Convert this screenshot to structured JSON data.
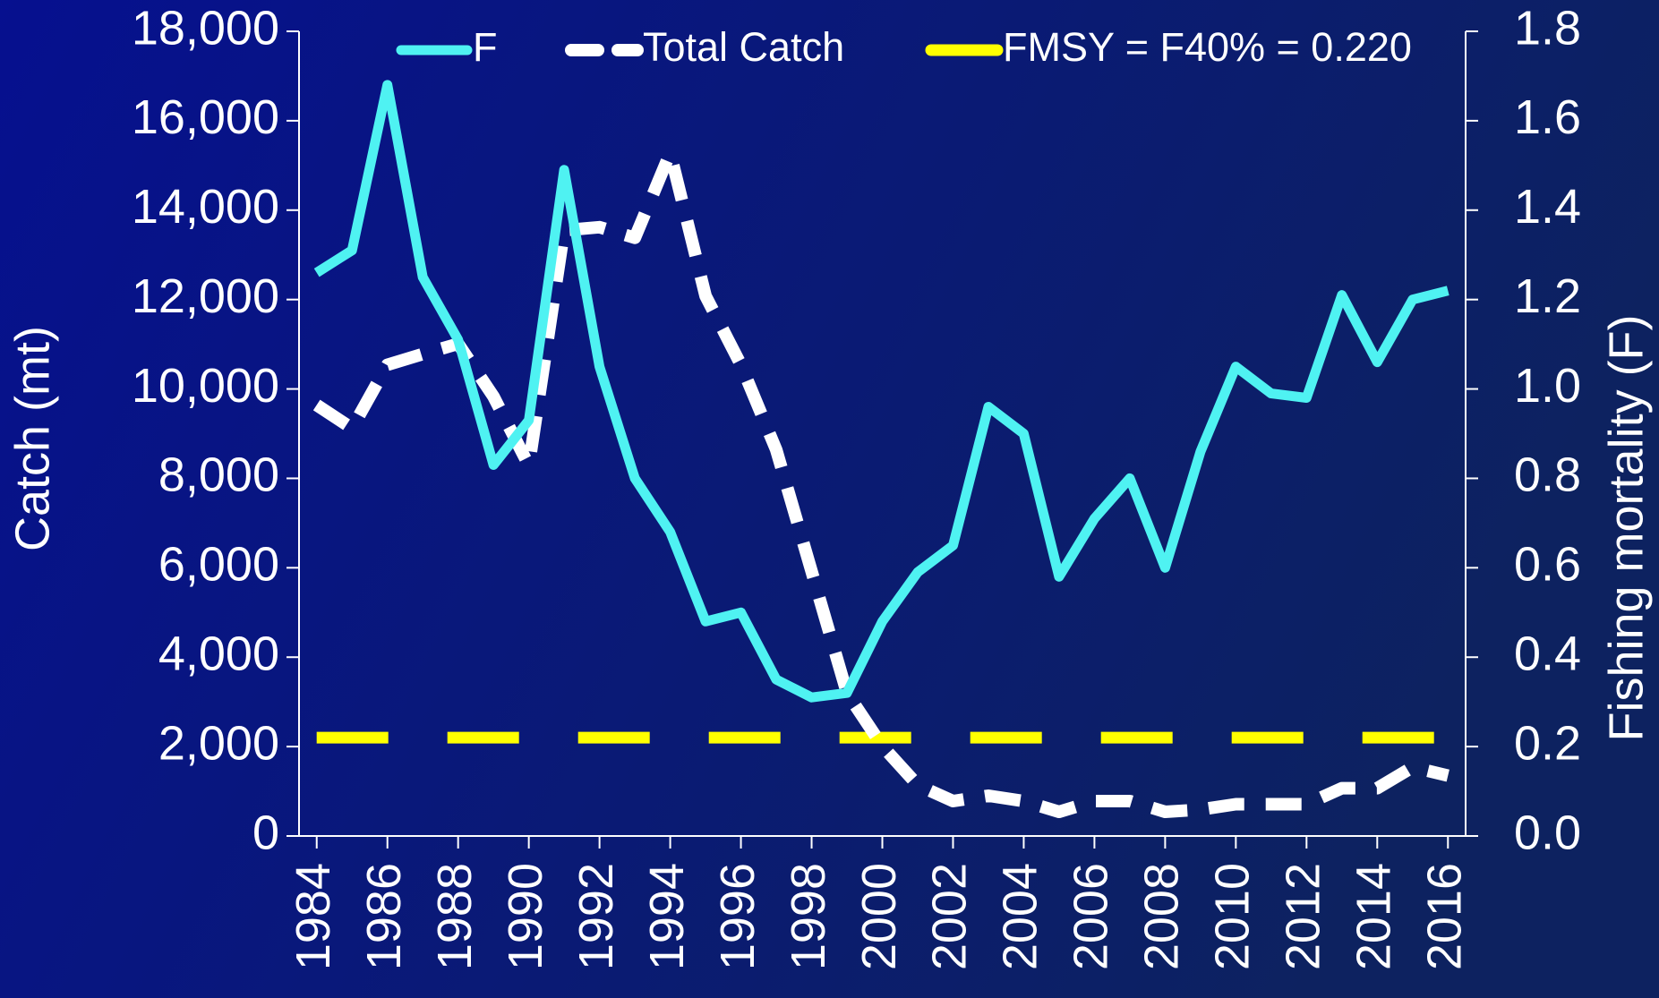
{
  "chart_data": {
    "type": "line",
    "y_label": "Catch (mt)",
    "y2_label": "Fishing mortality (F)",
    "x": [
      1984,
      1985,
      1986,
      1987,
      1988,
      1989,
      1990,
      1991,
      1992,
      1993,
      1994,
      1995,
      1996,
      1997,
      1998,
      1999,
      2000,
      2001,
      2002,
      2003,
      2004,
      2005,
      2006,
      2007,
      2008,
      2009,
      2010,
      2011,
      2012,
      2013,
      2014,
      2015,
      2016
    ],
    "xlim": [
      1983.5,
      2016.5
    ],
    "xticks": [
      1984,
      1986,
      1988,
      1990,
      1992,
      1994,
      1996,
      1998,
      2000,
      2002,
      2004,
      2006,
      2008,
      2010,
      2012,
      2014,
      2016
    ],
    "ylim": [
      0,
      18000
    ],
    "yticks": [
      {
        "value": 0,
        "label": "0"
      },
      {
        "value": 2000,
        "label": "2,000"
      },
      {
        "value": 4000,
        "label": "4,000"
      },
      {
        "value": 6000,
        "label": "6,000"
      },
      {
        "value": 8000,
        "label": "8,000"
      },
      {
        "value": 10000,
        "label": "10,000"
      },
      {
        "value": 12000,
        "label": "12,000"
      },
      {
        "value": 14000,
        "label": "14,000"
      },
      {
        "value": 16000,
        "label": "16,000"
      },
      {
        "value": 18000,
        "label": "18,000"
      }
    ],
    "y2lim": [
      0,
      1.8
    ],
    "y2ticks": [
      {
        "value": 0,
        "label": "0.0"
      },
      0.2,
      0.4,
      0.6,
      0.8,
      {
        "value": 1,
        "label": "1.0"
      },
      1.2,
      1.4,
      1.6,
      1.8
    ],
    "legend": "top",
    "series": [
      {
        "name": "F",
        "color": "#4ff2f2",
        "axis": "y2",
        "dash": "solid",
        "values": [
          1.26,
          1.31,
          1.68,
          1.25,
          1.11,
          0.83,
          0.93,
          1.49,
          1.05,
          0.8,
          0.68,
          0.48,
          0.5,
          0.35,
          0.31,
          0.32,
          0.48,
          0.59,
          0.65,
          0.96,
          0.9,
          0.58,
          0.71,
          0.8,
          0.6,
          0.86,
          1.05,
          0.99,
          0.98,
          1.21,
          1.06,
          1.2,
          1.22
        ]
      },
      {
        "name": "Total Catch",
        "color": "#ffffff",
        "axis": "y",
        "dash": "dashed",
        "values": [
          9640,
          9120,
          10540,
          10780,
          11010,
          9830,
          8290,
          13550,
          13620,
          13380,
          15280,
          12080,
          10540,
          8640,
          5920,
          3200,
          2010,
          1140,
          780,
          900,
          780,
          540,
          780,
          780,
          540,
          590,
          710,
          710,
          710,
          1070,
          1070,
          1540,
          1350
        ]
      },
      {
        "name": "FMSY = F40% = 0.220",
        "color": "#ffff00",
        "axis": "y2",
        "dash": "long-dashed",
        "values": [
          0.22,
          0.22,
          0.22,
          0.22,
          0.22,
          0.22,
          0.22,
          0.22,
          0.22,
          0.22,
          0.22,
          0.22,
          0.22,
          0.22,
          0.22,
          0.22,
          0.22,
          0.22,
          0.22,
          0.22,
          0.22,
          0.22,
          0.22,
          0.22,
          0.22,
          0.22,
          0.22,
          0.22,
          0.22,
          0.22,
          0.22,
          0.22,
          0.22
        ]
      }
    ]
  }
}
